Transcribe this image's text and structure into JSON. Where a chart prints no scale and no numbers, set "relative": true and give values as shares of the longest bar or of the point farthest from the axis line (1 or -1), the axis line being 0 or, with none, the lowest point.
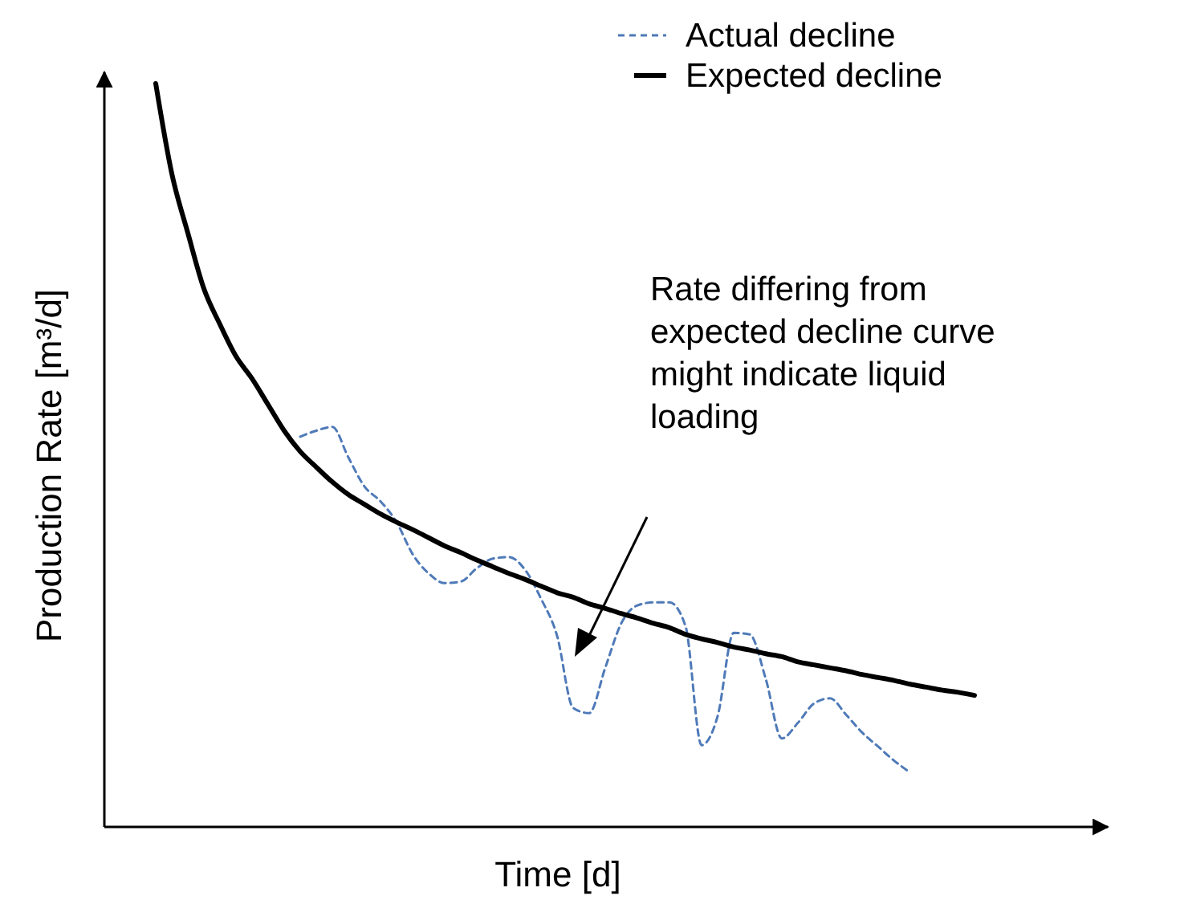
{
  "chart_data": {
    "type": "line",
    "relative": true,
    "xlabel": "Time [d]",
    "ylabel": "Production Rate [m³/d]",
    "legend": "top right",
    "categories": [
      null,
      null,
      null,
      null,
      null,
      null,
      null,
      null,
      null,
      null,
      null,
      null,
      null,
      null,
      null,
      null,
      null,
      null,
      null,
      null,
      null,
      null,
      null,
      null,
      null,
      null,
      null,
      null,
      null,
      null,
      null,
      null,
      null,
      null,
      null,
      null,
      null,
      null,
      null,
      null,
      null,
      null,
      null,
      null,
      null,
      null,
      null,
      null,
      null,
      null,
      null,
      null
    ],
    "series": [
      {
        "name": "Actual decline",
        "color": "#4f7ab8",
        "line_style": "dashed",
        "values": [
          null,
          null,
          null,
          null,
          null,
          null,
          null,
          null,
          null,
          0.525,
          0.533,
          0.538,
          0.497,
          0.458,
          0.438,
          0.41,
          0.367,
          0.341,
          0.328,
          0.33,
          0.348,
          0.361,
          0.363,
          0.346,
          0.307,
          0.257,
          0.16,
          0.153,
          0.214,
          0.274,
          0.298,
          0.302,
          0.302,
          0.27,
          0.11,
          0.149,
          0.261,
          0.259,
          0.199,
          0.119,
          0.14,
          0.166,
          0.173,
          0.151,
          0.127,
          0.108,
          0.089,
          0.073,
          null,
          null,
          null,
          null
        ]
      },
      {
        "name": "Expected decline",
        "color": "#000000",
        "line_style": "solid",
        "values": [
          1,
          0.879,
          0.799,
          0.724,
          0.676,
          0.633,
          0.603,
          0.568,
          0.533,
          0.505,
          0.484,
          0.464,
          0.447,
          0.434,
          0.421,
          0.41,
          0.4,
          0.389,
          0.378,
          0.369,
          0.359,
          0.35,
          0.341,
          0.333,
          0.324,
          0.315,
          0.309,
          0.3,
          0.294,
          0.287,
          0.281,
          0.274,
          0.268,
          0.259,
          0.253,
          0.248,
          0.242,
          0.238,
          0.233,
          0.229,
          0.222,
          0.218,
          0.214,
          0.21,
          0.205,
          0.201,
          0.197,
          0.192,
          0.188,
          0.184,
          0.181,
          0.177
        ]
      }
    ],
    "annotations": [
      "Rate differing from expected decline curve might indicate liquid loading"
    ]
  }
}
